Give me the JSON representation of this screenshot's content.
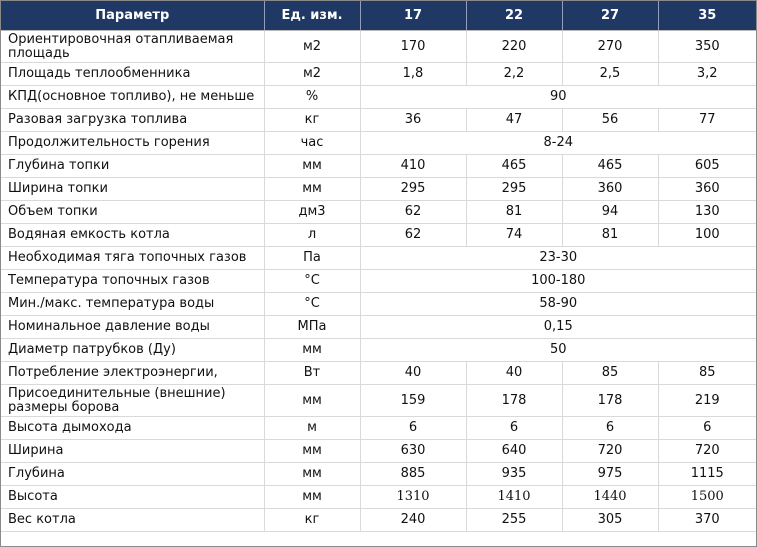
{
  "table": {
    "headers": [
      "Параметр",
      "Ед. изм.",
      "17",
      "22",
      "27",
      "35"
    ],
    "rows": [
      {
        "param": "Ориентировочная отапливаемая площадь",
        "unit": "м2",
        "values": [
          "170",
          "220",
          "270",
          "350"
        ],
        "tall": true
      },
      {
        "param": "Площадь теплообменника",
        "unit": "м2",
        "values": [
          "1,8",
          "2,2",
          "2,5",
          "3,2"
        ]
      },
      {
        "param": "КПД(основное топливо), не меньше",
        "unit": "%",
        "shared": "90"
      },
      {
        "param": "Разовая загрузка топлива",
        "unit": "кг",
        "values": [
          "36",
          "47",
          "56",
          "77"
        ]
      },
      {
        "param": "Продолжительность горения",
        "unit": "час",
        "shared": "8-24"
      },
      {
        "param": "Глубина топки",
        "unit": "мм",
        "values": [
          "410",
          "465",
          "465",
          "605"
        ]
      },
      {
        "param": "Ширина топки",
        "unit": "мм",
        "values": [
          "295",
          "295",
          "360",
          "360"
        ]
      },
      {
        "param": "Объем топки",
        "unit": "дм3",
        "values": [
          "62",
          "81",
          "94",
          "130"
        ]
      },
      {
        "param": "Водяная емкость котла",
        "unit": "л",
        "values": [
          "62",
          "74",
          "81",
          "100"
        ]
      },
      {
        "param": "Необходимая тяга топочных газов",
        "unit": "Па",
        "shared": "23-30"
      },
      {
        "param": "Температура топочных газов",
        "unit": "°C",
        "shared": "100-180"
      },
      {
        "param": "Мин./макс. температура воды",
        "unit": "°C",
        "shared": "58-90"
      },
      {
        "param": "Номинальное давление воды",
        "unit": "МПа",
        "shared": "0,15"
      },
      {
        "param": "Диаметр патрубков (Ду)",
        "unit": "мм",
        "shared": "50"
      },
      {
        "param": "Потребление электроэнергии,",
        "unit": "Вт",
        "values": [
          "40",
          "40",
          "85",
          "85"
        ]
      },
      {
        "param": "Присоединительные (внешние) размеры борова",
        "unit": "мм",
        "values": [
          "159",
          "178",
          "178",
          "219"
        ],
        "tall": true
      },
      {
        "param": "Высота дымохода",
        "unit": "м",
        "values": [
          "6",
          "6",
          "6",
          "6"
        ]
      },
      {
        "param": "Ширина",
        "unit": "мм",
        "values": [
          "630",
          "640",
          "720",
          "720"
        ]
      },
      {
        "param": "Глубина",
        "unit": "мм",
        "values": [
          "885",
          "935",
          "975",
          "1115"
        ]
      },
      {
        "param": "Высота",
        "unit": "мм",
        "values": [
          "1310",
          "1410",
          "1440",
          "1500"
        ],
        "serif": true
      },
      {
        "param": "Вес котла",
        "unit": "кг",
        "values": [
          "240",
          "255",
          "305",
          "370"
        ]
      }
    ]
  }
}
